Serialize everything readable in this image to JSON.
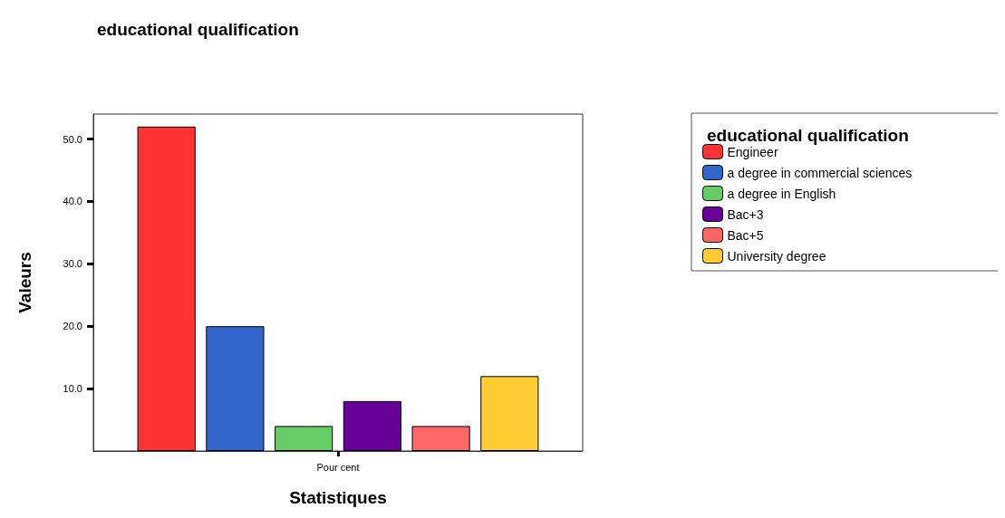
{
  "chart_data": {
    "type": "bar",
    "title": "educational qualification",
    "xlabel": "Statistiques",
    "ylabel": "Valeurs",
    "legend_title": "educational qualification",
    "categories": [
      "Pour cent"
    ],
    "series": [
      {
        "name": "Engineer",
        "color": "#ff3333",
        "values": [
          52
        ]
      },
      {
        "name": "a degree in commercial sciences",
        "color": "#3366cc",
        "values": [
          20
        ]
      },
      {
        "name": "a degree in English",
        "color": "#66cc66",
        "values": [
          4
        ]
      },
      {
        "name": "Bac+3",
        "color": "#660099",
        "values": [
          8
        ]
      },
      {
        "name": "Bac+5",
        "color": "#ff6666",
        "values": [
          4
        ]
      },
      {
        "name": "University degree",
        "color": "#ffcc33",
        "values": [
          12
        ]
      }
    ],
    "ylim": [
      0,
      54
    ],
    "yticks": [
      {
        "value": 10,
        "label": "10.0"
      },
      {
        "value": 20,
        "label": "20.0"
      },
      {
        "value": 30,
        "label": "30.0"
      },
      {
        "value": 40,
        "label": "40.0"
      },
      {
        "value": 50,
        "label": "50.0"
      }
    ],
    "legend": "right"
  }
}
